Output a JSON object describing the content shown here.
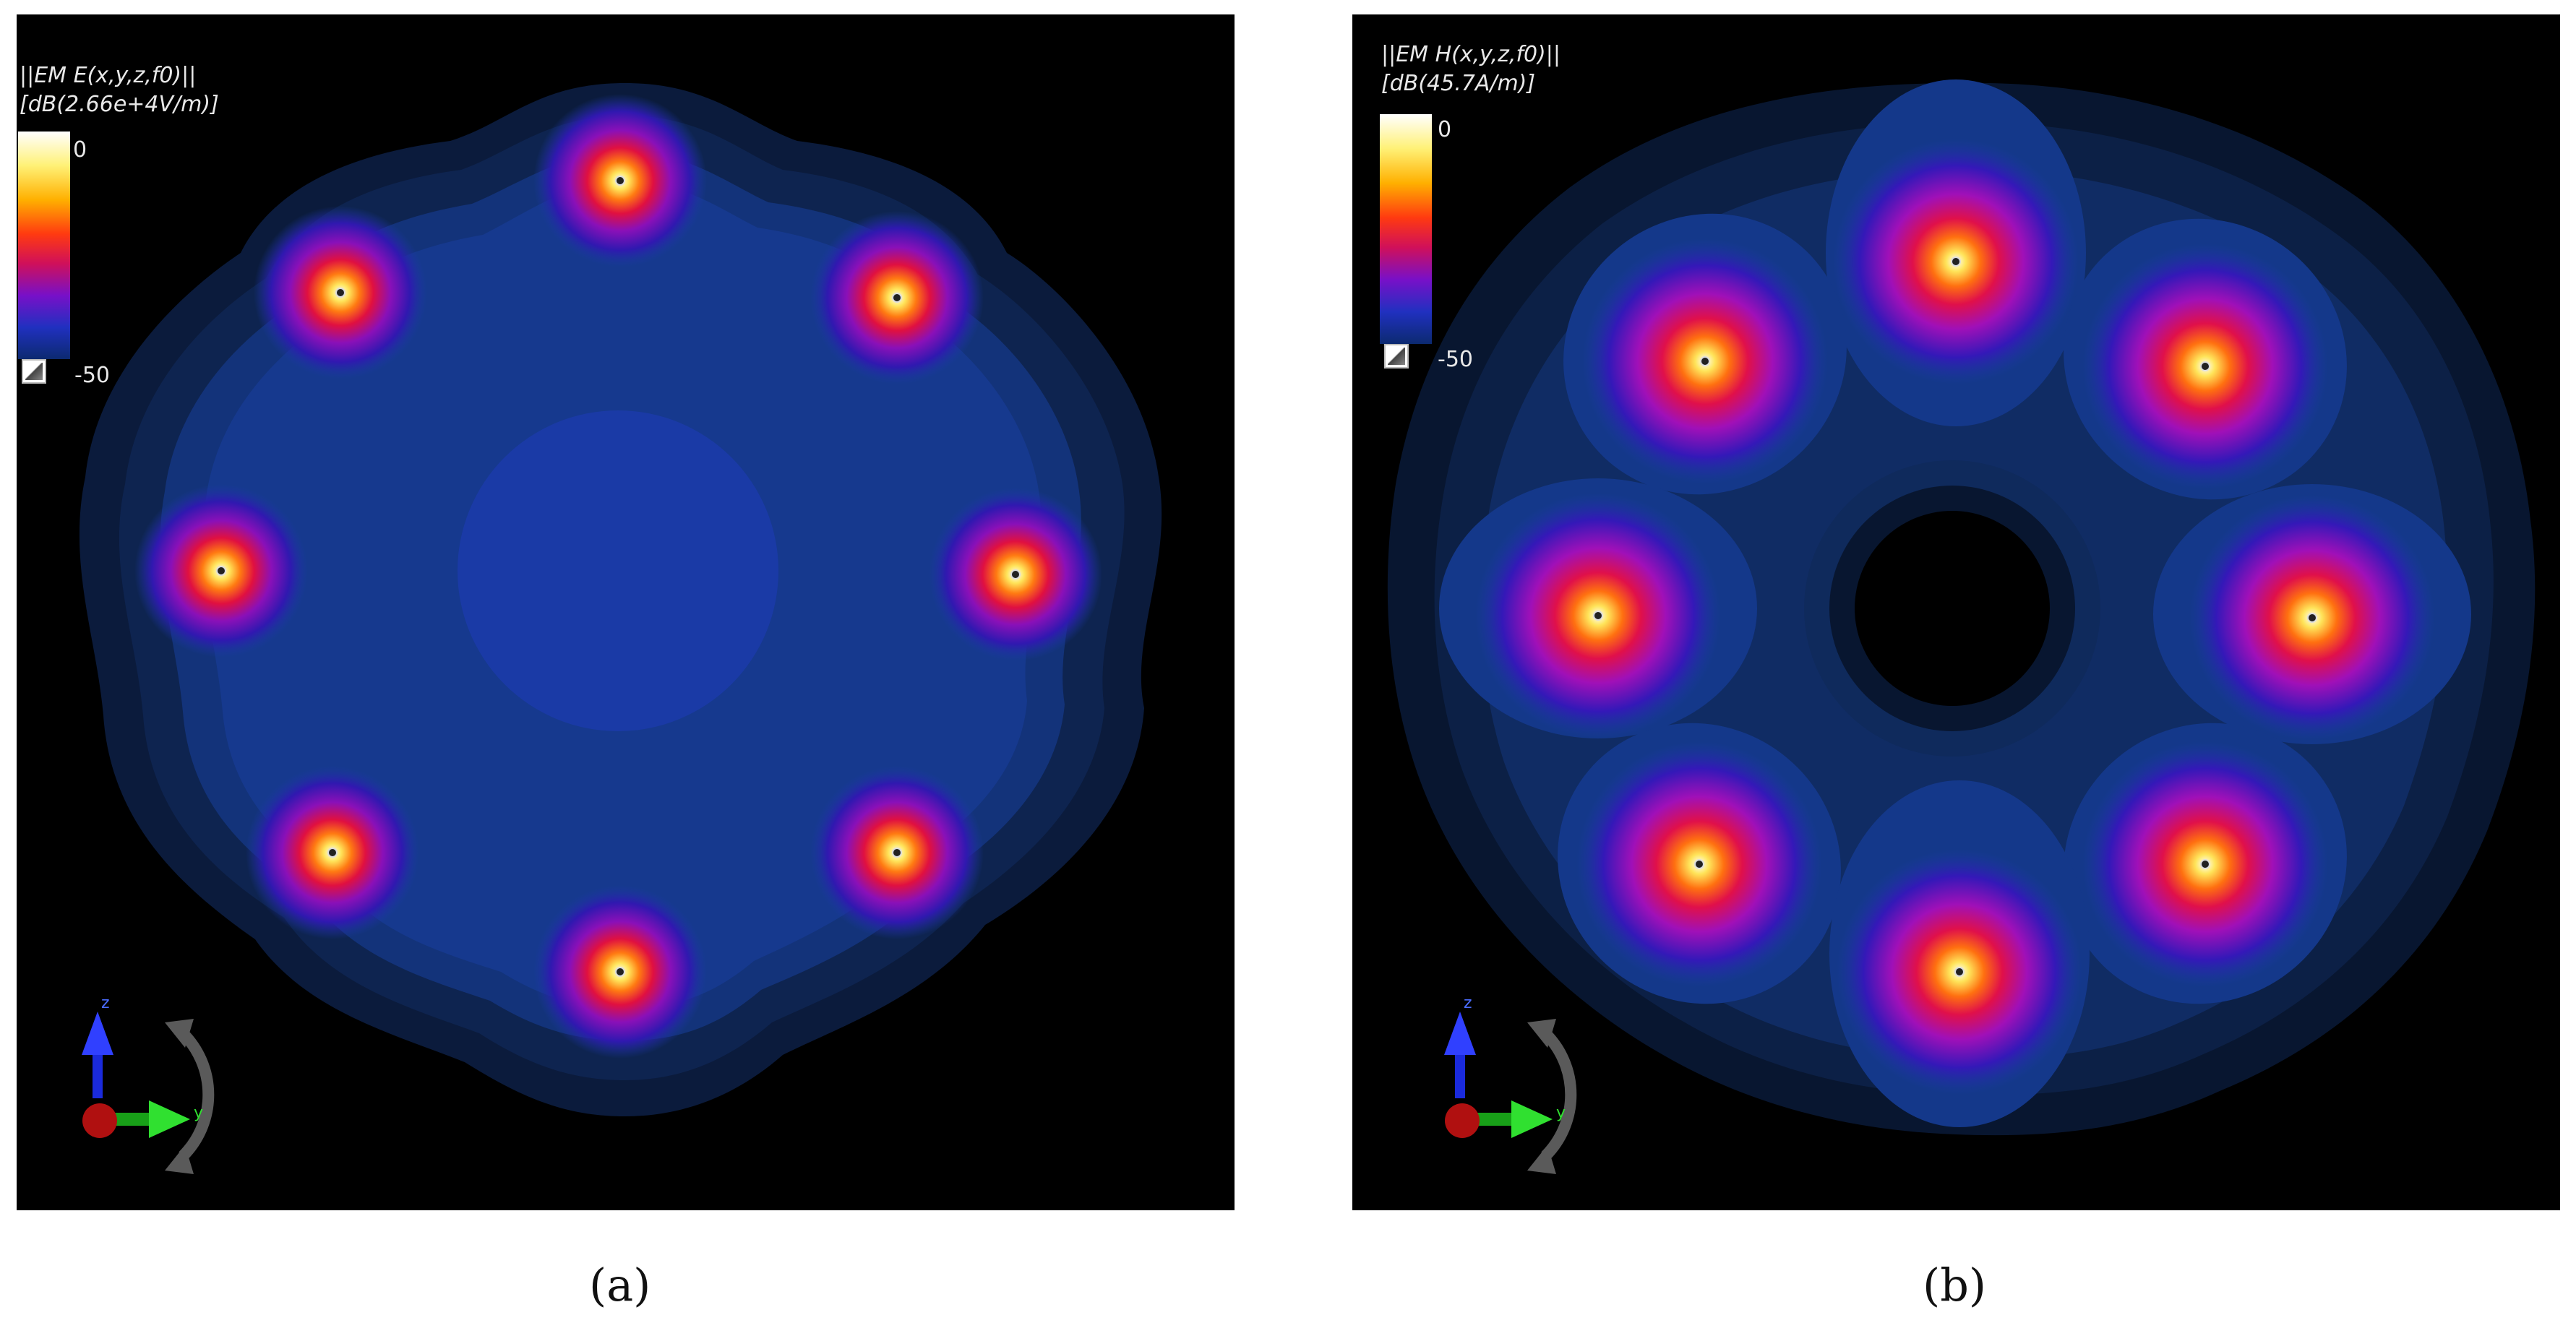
{
  "panels": [
    {
      "id": "a",
      "legend_line1": "||EM E(x,y,z,f0)||",
      "legend_line2": "[dB(2.66e+4V/m)]",
      "scale_max": "0",
      "scale_min": "-50",
      "axis_z": "z",
      "axis_y": "y",
      "caption": "(a)"
    },
    {
      "id": "b",
      "legend_line1": "||EM H(x,y,z,f0)||",
      "legend_line2": "[dB(45.7A/m)]",
      "scale_max": "0",
      "scale_min": "-50",
      "axis_z": "z",
      "axis_y": "y",
      "caption": "(b)"
    }
  ],
  "colors": {
    "background": "#000000",
    "field_outer": "#0a1a38",
    "field_mid": "#102a5c",
    "field_inner": "#153a86",
    "field_core": "#1a3aa6",
    "hotspot": "#ffd23c"
  },
  "icons": [
    "reset-view-icon",
    "axis-triad-icon",
    "rotate-arrows-icon"
  ]
}
